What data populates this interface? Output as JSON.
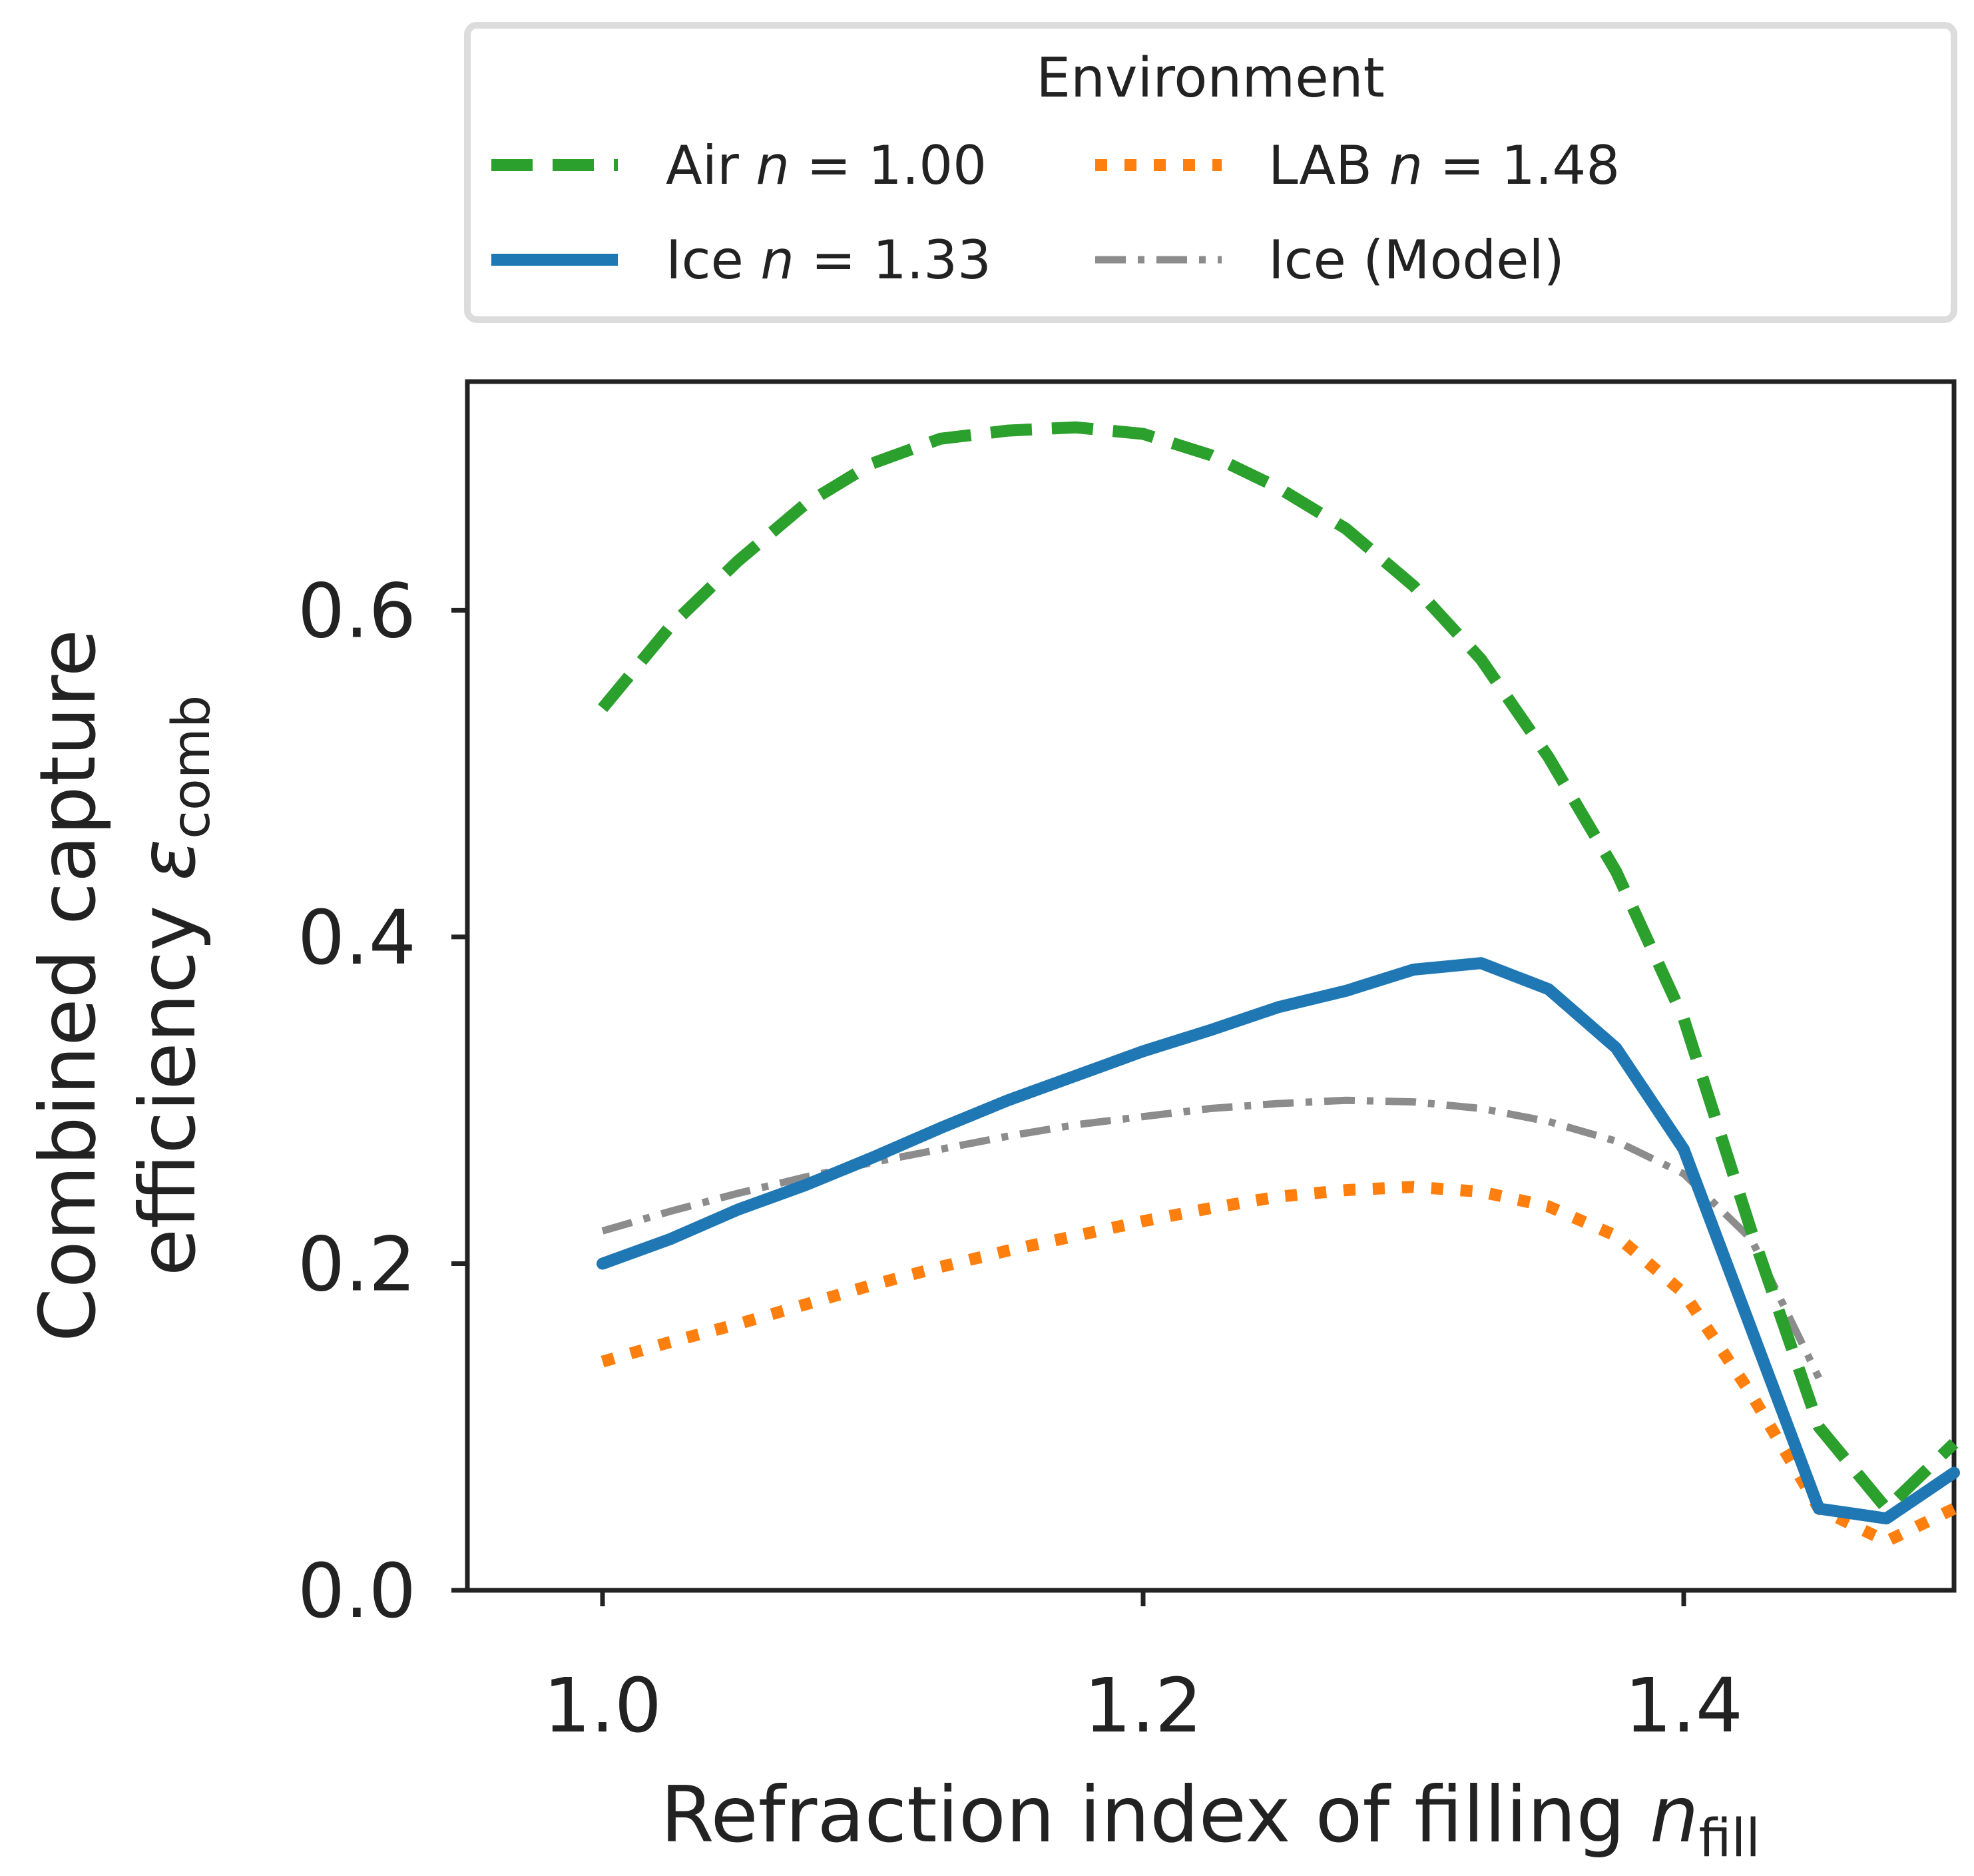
{
  "chart_data": {
    "type": "line",
    "title": "",
    "xlabel": {
      "main": "Refraction index of filling ",
      "symbol": "n",
      "subscript": "fill"
    },
    "ylabel": {
      "line1": "Combined capture",
      "line2_main": "efficiency ",
      "symbol": "ε",
      "subscript": "comb"
    },
    "xlim": [
      0.95,
      1.5
    ],
    "ylim": [
      0.0,
      0.74
    ],
    "xticks": [
      1.0,
      1.2,
      1.4
    ],
    "xtick_labels": [
      "1.0",
      "1.2",
      "1.4"
    ],
    "yticks": [
      0.0,
      0.2,
      0.4,
      0.6
    ],
    "ytick_labels": [
      "0.0",
      "0.2",
      "0.4",
      "0.6"
    ],
    "grid": false,
    "legend": {
      "title": "Environment",
      "placement": "above plot"
    },
    "series": [
      {
        "name": "Air",
        "label_main": "Air ",
        "label_symbol": "n",
        "label_eq": " = 1.00",
        "color": "#2ca02c",
        "style": "dashed",
        "x": [
          1.0,
          1.025,
          1.05,
          1.075,
          1.1,
          1.125,
          1.15,
          1.175,
          1.2,
          1.225,
          1.25,
          1.275,
          1.3,
          1.325,
          1.35,
          1.375,
          1.4,
          1.425,
          1.45,
          1.475,
          1.5
        ],
        "y": [
          0.54,
          0.59,
          0.63,
          0.665,
          0.69,
          0.705,
          0.71,
          0.712,
          0.708,
          0.695,
          0.675,
          0.65,
          0.615,
          0.57,
          0.51,
          0.44,
          0.35,
          0.22,
          0.1,
          0.05,
          0.09
        ]
      },
      {
        "name": "LAB",
        "label_main": "LAB ",
        "label_symbol": "n",
        "label_eq": " = 1.48",
        "color": "#ff7f0e",
        "style": "dotted",
        "x": [
          1.0,
          1.025,
          1.05,
          1.075,
          1.1,
          1.125,
          1.15,
          1.175,
          1.2,
          1.225,
          1.25,
          1.275,
          1.3,
          1.325,
          1.35,
          1.375,
          1.4,
          1.425,
          1.45,
          1.475,
          1.5
        ],
        "y": [
          0.14,
          0.152,
          0.163,
          0.175,
          0.187,
          0.198,
          0.208,
          0.217,
          0.226,
          0.234,
          0.241,
          0.245,
          0.247,
          0.244,
          0.235,
          0.217,
          0.182,
          0.12,
          0.05,
          0.03,
          0.05
        ]
      },
      {
        "name": "Ice",
        "label_main": "Ice ",
        "label_symbol": "n",
        "label_eq": " = 1.33",
        "color": "#1f77b4",
        "style": "solid",
        "x": [
          1.0,
          1.025,
          1.05,
          1.075,
          1.1,
          1.125,
          1.15,
          1.175,
          1.2,
          1.225,
          1.25,
          1.275,
          1.3,
          1.325,
          1.35,
          1.375,
          1.4,
          1.425,
          1.45,
          1.475,
          1.5
        ],
        "y": [
          0.2,
          0.215,
          0.233,
          0.248,
          0.265,
          0.283,
          0.3,
          0.315,
          0.33,
          0.343,
          0.357,
          0.367,
          0.38,
          0.384,
          0.368,
          0.332,
          0.27,
          0.16,
          0.05,
          0.044,
          0.072
        ]
      },
      {
        "name": "Ice (Model)",
        "label_main": "Ice (Model)",
        "label_symbol": "",
        "label_eq": "",
        "color": "#8c8c8c",
        "style": "dashdot",
        "x": [
          1.0,
          1.025,
          1.05,
          1.075,
          1.1,
          1.125,
          1.15,
          1.175,
          1.2,
          1.225,
          1.25,
          1.275,
          1.3,
          1.325,
          1.35,
          1.375,
          1.4,
          1.425,
          1.45
        ],
        "y": [
          0.22,
          0.232,
          0.243,
          0.253,
          0.262,
          0.27,
          0.278,
          0.285,
          0.29,
          0.295,
          0.298,
          0.3,
          0.299,
          0.295,
          0.287,
          0.275,
          0.255,
          0.215,
          0.13
        ]
      }
    ]
  }
}
